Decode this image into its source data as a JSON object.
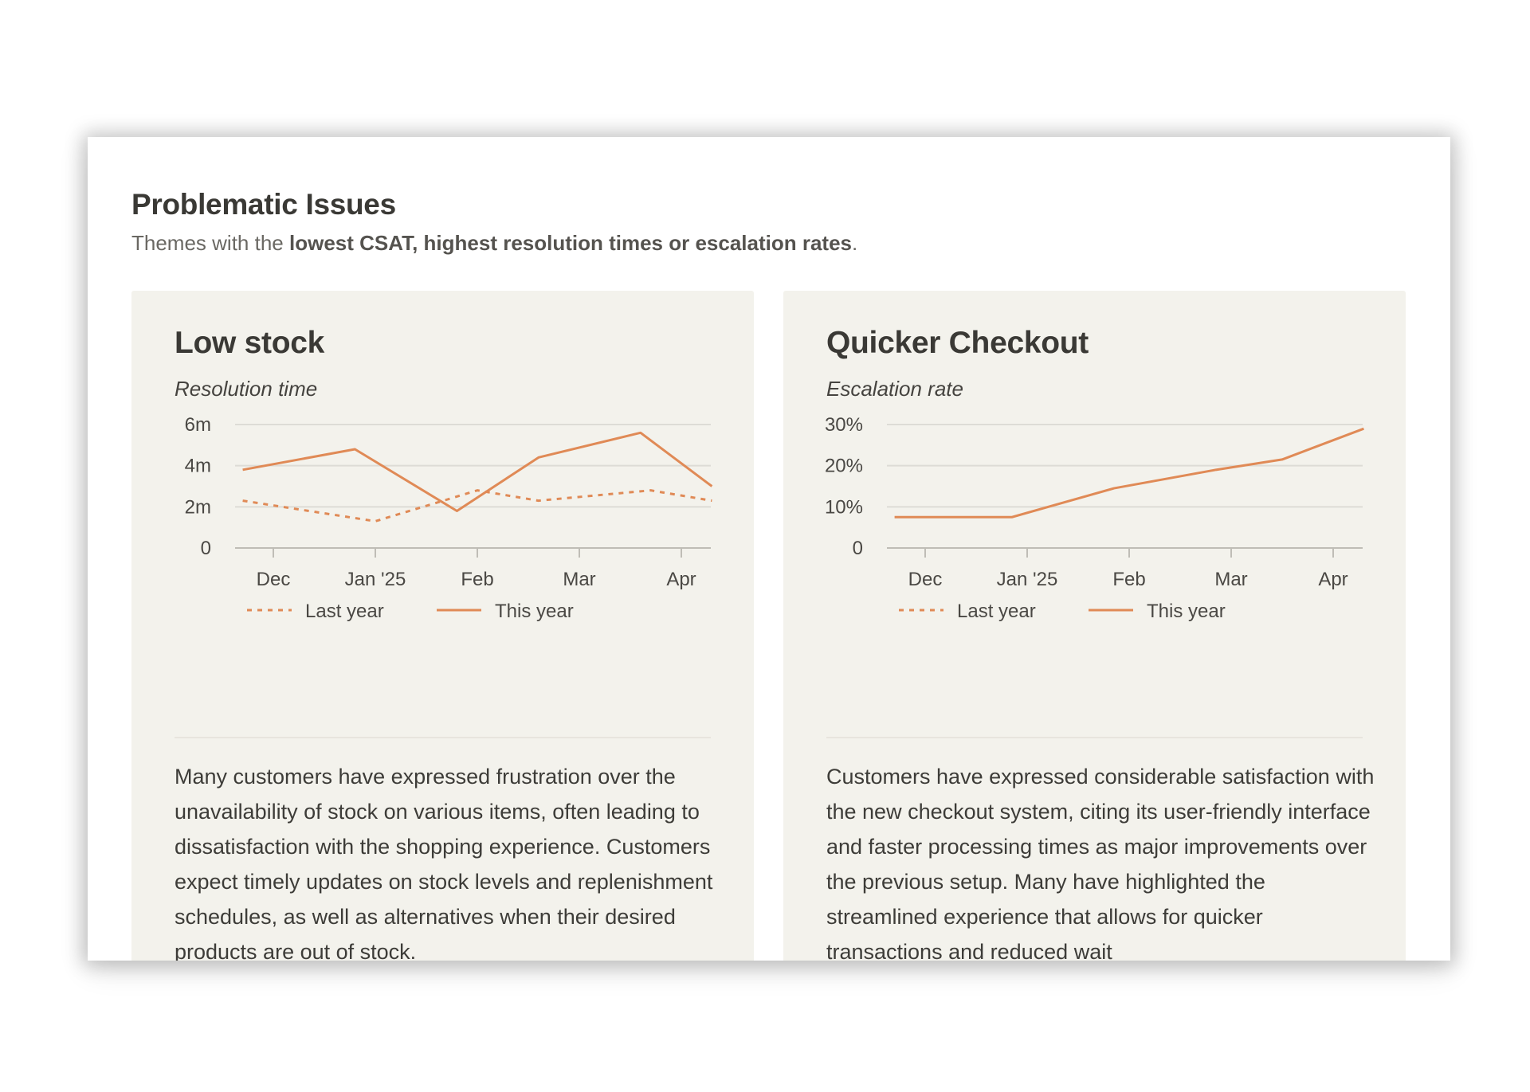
{
  "section": {
    "title": "Problematic Issues",
    "subtitle_prefix": "Themes with the ",
    "subtitle_bold": "lowest CSAT, highest resolution times or escalation rates",
    "subtitle_suffix": "."
  },
  "cards": [
    {
      "title": "Low stock",
      "metric_label": "Resolution time",
      "summary": "Many customers have expressed frustration over the unavailability of stock on various items, often leading to dissatisfaction with the shopping experience. Customers expect timely updates on stock levels and replenishment schedules, as well as alternatives when their desired products are out of stock."
    },
    {
      "title": "Quicker Checkout",
      "metric_label": "Escalation rate",
      "summary": "Customers have expressed considerable satisfaction with the new checkout system, citing its user-friendly interface and faster processing times as major improvements over the previous setup. Many have highlighted the streamlined experience that allows for quicker transactions and reduced wait"
    }
  ],
  "colors": {
    "line": "#e08a56",
    "grid": "#dddcd6",
    "axis": "#bfbdb6",
    "card_bg": "#f3f2ec"
  },
  "chart_data": [
    {
      "type": "line",
      "ylabel": "Resolution time",
      "x_ticks": [
        "Dec",
        "Jan '25",
        "Feb",
        "Mar",
        "Apr"
      ],
      "y_ticks": [
        "0",
        "2m",
        "4m",
        "6m"
      ],
      "ylim": [
        0,
        6
      ],
      "xlim": [
        0,
        4.3
      ],
      "series": [
        {
          "name": "Last year",
          "style": "dashed",
          "x": [
            -0.3,
            1.0,
            2.0,
            2.6,
            3.7,
            4.3
          ],
          "y": [
            2.3,
            1.3,
            2.8,
            2.3,
            2.8,
            2.3
          ]
        },
        {
          "name": "This year",
          "style": "solid",
          "x": [
            -0.3,
            0.8,
            1.8,
            2.6,
            3.6,
            4.3
          ],
          "y": [
            3.8,
            4.8,
            1.8,
            4.4,
            5.6,
            3.0
          ]
        }
      ],
      "legend": [
        "Last year",
        "This year"
      ],
      "legend_position": "bottom",
      "grid": true
    },
    {
      "type": "line",
      "ylabel": "Escalation rate",
      "x_ticks": [
        "Dec",
        "Jan '25",
        "Feb",
        "Mar",
        "Apr"
      ],
      "y_ticks": [
        "0",
        "10%",
        "20%",
        "30%"
      ],
      "ylim": [
        0,
        30
      ],
      "xlim": [
        0,
        4.3
      ],
      "series": [
        {
          "name": "This year",
          "style": "solid",
          "x": [
            -0.3,
            0.85,
            1.85,
            2.85,
            3.5,
            4.3
          ],
          "y": [
            7.5,
            7.5,
            14.5,
            19,
            21.5,
            29
          ]
        }
      ],
      "legend": [
        "Last year",
        "This year"
      ],
      "legend_position": "bottom",
      "grid": true
    }
  ]
}
